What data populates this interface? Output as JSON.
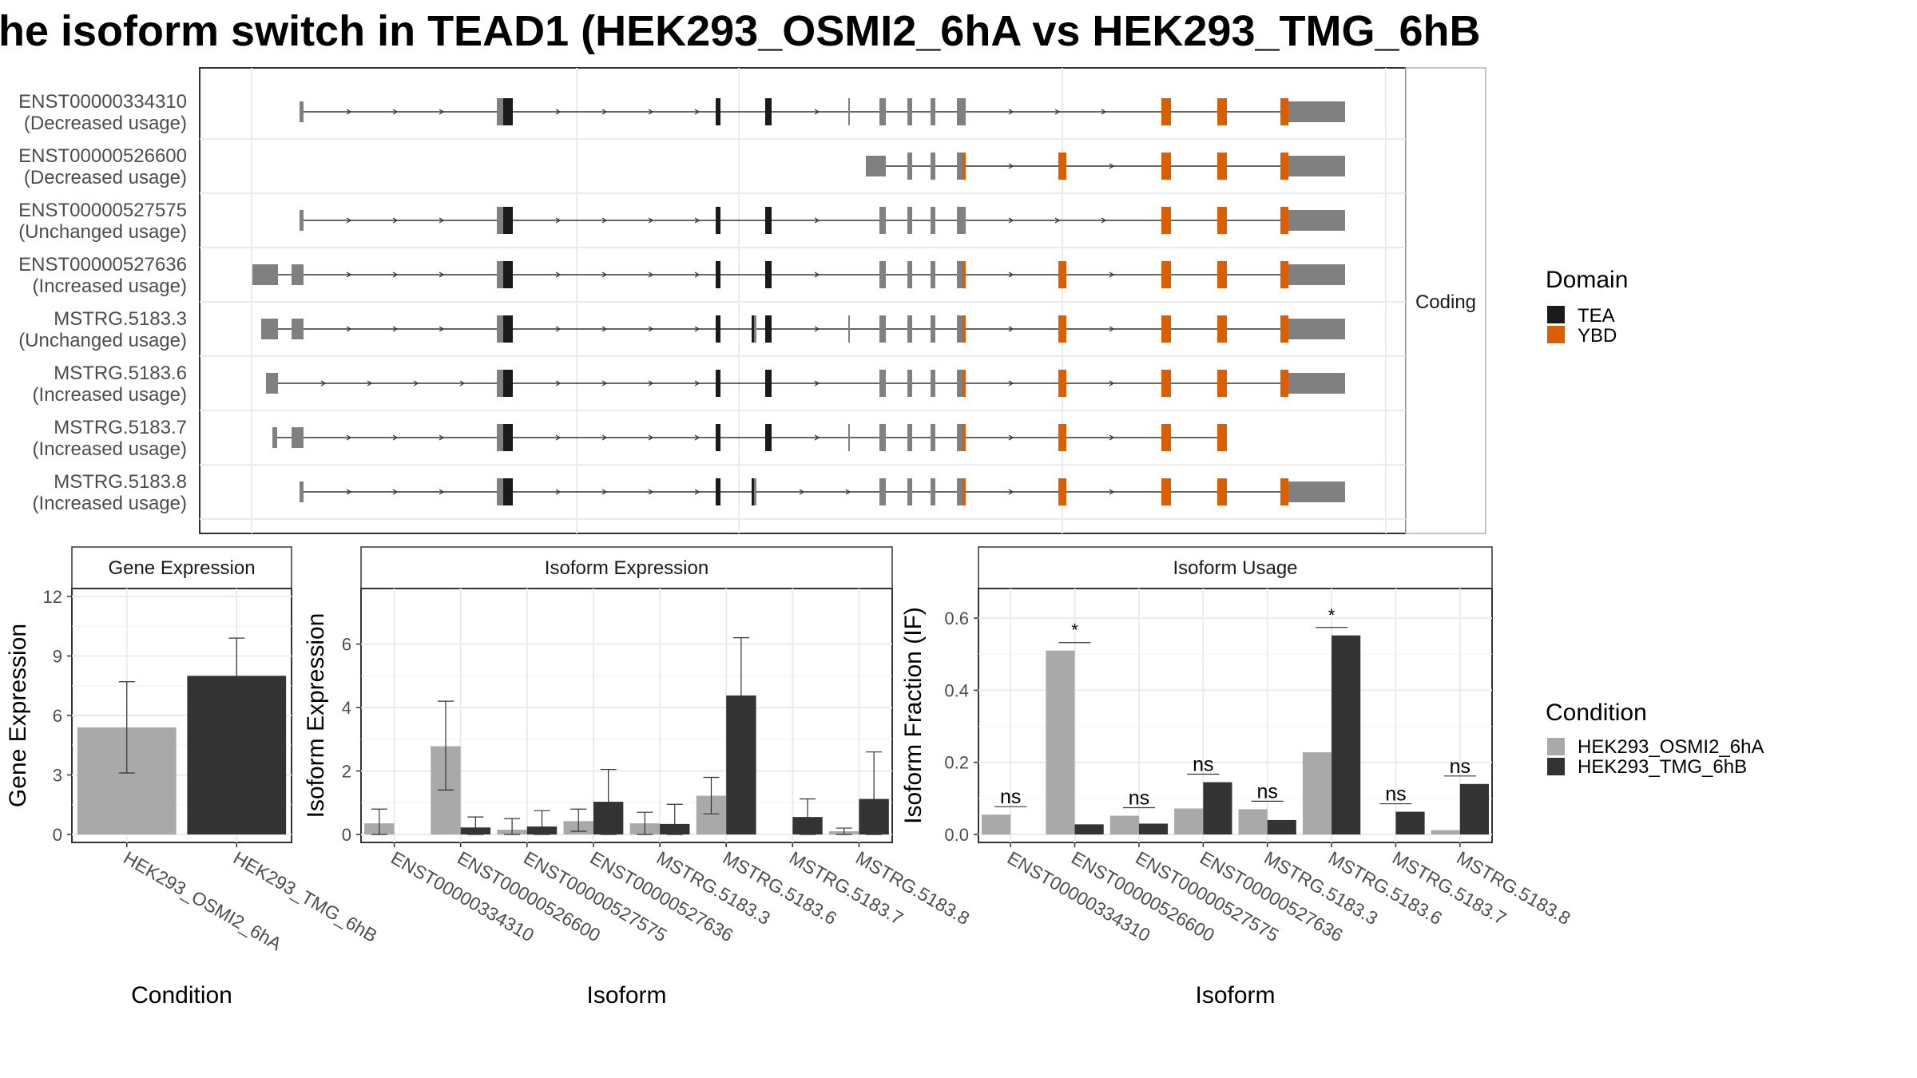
{
  "title": "he isoform switch in TEAD1 (HEK293_OSMI2_6hA vs HEK293_TMG_6hB",
  "colors": {
    "TEA": "#1a1a1a",
    "YBD": "#d95f02",
    "non_domain": "#808080",
    "cond1": "#a9a9a9",
    "cond2": "#333333",
    "panel_border": "#333333",
    "grid": "#ebebeb"
  },
  "chart_data": [
    {
      "type": "gene-structure",
      "strip_label": "Coding",
      "transcripts": [
        {
          "id": "ENST00000334310",
          "status": "(Decreased usage)",
          "start": 375,
          "cds": [
            625,
            642
          ],
          "tea": [
            630,
            642
          ],
          "ybd": [],
          "exons": [
            [
              375,
              380
            ],
            [
              622,
              642
            ],
            [
              896,
              902
            ],
            [
              958,
              966
            ],
            [
              1062,
              1064
            ],
            [
              1101,
              1109
            ],
            [
              1136,
              1142
            ],
            [
              1165,
              1171
            ],
            [
              1198,
              1209
            ],
            [
              1454,
              1466
            ],
            [
              1524,
              1536
            ],
            [
              1603,
              1684
            ]
          ]
        },
        {
          "id": "ENST00000526600",
          "status": "(Decreased usage)",
          "start": 1084,
          "cds": [
            1088,
            1203
          ],
          "tea": [],
          "ybd": [
            1198,
            1209
          ],
          "exons": [
            [
              1084,
              1109
            ],
            [
              1136,
              1142
            ],
            [
              1165,
              1171
            ],
            [
              1198,
              1209
            ],
            [
              1325,
              1335
            ],
            [
              1454,
              1466
            ],
            [
              1524,
              1536
            ],
            [
              1603,
              1684
            ]
          ]
        },
        {
          "id": "ENST00000527575",
          "status": "(Unchanged usage)",
          "start": 375,
          "cds": [
            625,
            642
          ],
          "tea": [
            630,
            642
          ],
          "ybd": [],
          "exons": [
            [
              375,
              380
            ],
            [
              622,
              642
            ],
            [
              896,
              902
            ],
            [
              958,
              966
            ],
            [
              1101,
              1109
            ],
            [
              1136,
              1142
            ],
            [
              1165,
              1171
            ],
            [
              1198,
              1209
            ],
            [
              1454,
              1466
            ],
            [
              1524,
              1536
            ],
            [
              1603,
              1684
            ]
          ]
        },
        {
          "id": "ENST00000527636",
          "status": "(Increased usage)",
          "start": 316,
          "cds": [
            625,
            642
          ],
          "tea": [
            630,
            642
          ],
          "ybd": [],
          "exons": [
            [
              316,
              348
            ],
            [
              365,
              380
            ],
            [
              622,
              642
            ],
            [
              896,
              902
            ],
            [
              958,
              966
            ],
            [
              1101,
              1109
            ],
            [
              1136,
              1142
            ],
            [
              1165,
              1171
            ],
            [
              1198,
              1209
            ],
            [
              1325,
              1335
            ],
            [
              1454,
              1466
            ],
            [
              1524,
              1536
            ],
            [
              1603,
              1684
            ]
          ]
        },
        {
          "id": "MSTRG.5183.3",
          "status": "(Unchanged usage)",
          "start": 327,
          "cds": [
            625,
            642
          ],
          "tea": [
            630,
            642
          ],
          "ybd": [],
          "exons": [
            [
              327,
              348
            ],
            [
              365,
              380
            ],
            [
              622,
              642
            ],
            [
              896,
              902
            ],
            [
              941,
              947
            ],
            [
              958,
              966
            ],
            [
              1062,
              1064
            ],
            [
              1101,
              1109
            ],
            [
              1136,
              1142
            ],
            [
              1165,
              1171
            ],
            [
              1198,
              1209
            ],
            [
              1325,
              1335
            ],
            [
              1454,
              1466
            ],
            [
              1524,
              1536
            ],
            [
              1603,
              1684
            ]
          ]
        },
        {
          "id": "MSTRG.5183.6",
          "status": "(Increased usage)",
          "start": 333,
          "cds": [
            625,
            642
          ],
          "tea": [
            630,
            642
          ],
          "ybd": [],
          "exons": [
            [
              333,
              348
            ],
            [
              622,
              642
            ],
            [
              896,
              902
            ],
            [
              958,
              966
            ],
            [
              1101,
              1109
            ],
            [
              1136,
              1142
            ],
            [
              1165,
              1171
            ],
            [
              1198,
              1209
            ],
            [
              1325,
              1335
            ],
            [
              1454,
              1466
            ],
            [
              1524,
              1536
            ],
            [
              1603,
              1684
            ]
          ]
        },
        {
          "id": "MSTRG.5183.7",
          "status": "(Increased usage)",
          "start": 341,
          "cds": [
            625,
            642
          ],
          "tea": [
            630,
            642
          ],
          "ybd": [],
          "exons": [
            [
              341,
              347
            ],
            [
              365,
              380
            ],
            [
              622,
              642
            ],
            [
              896,
              902
            ],
            [
              958,
              966
            ],
            [
              1062,
              1064
            ],
            [
              1101,
              1109
            ],
            [
              1136,
              1142
            ],
            [
              1165,
              1171
            ],
            [
              1198,
              1209
            ],
            [
              1325,
              1335
            ],
            [
              1454,
              1466
            ],
            [
              1524,
              1536
            ]
          ]
        },
        {
          "id": "MSTRG.5183.8",
          "status": "(Increased usage)",
          "start": 375,
          "cds": [
            625,
            642
          ],
          "tea": [
            630,
            642
          ],
          "ybd": [],
          "exons": [
            [
              375,
              380
            ],
            [
              622,
              642
            ],
            [
              896,
              902
            ],
            [
              941,
              947
            ],
            [
              1101,
              1109
            ],
            [
              1136,
              1142
            ],
            [
              1165,
              1171
            ],
            [
              1198,
              1209
            ],
            [
              1325,
              1335
            ],
            [
              1454,
              1466
            ],
            [
              1524,
              1536
            ],
            [
              1603,
              1684
            ]
          ]
        }
      ],
      "legend": {
        "title": "Domain",
        "items": [
          "TEA",
          "YBD"
        ]
      }
    },
    {
      "type": "bar",
      "strip_label": "Gene Expression",
      "xlabel": "Condition",
      "ylabel": "Gene Expression",
      "ylim": [
        0,
        12
      ],
      "yticks": [
        0,
        3,
        6,
        9,
        12
      ],
      "categories": [
        "HEK293_OSMI2_6hA",
        "HEK293_TMG_6hB"
      ],
      "values": [
        5.4,
        8.0
      ],
      "errors": [
        [
          3.1,
          7.7
        ],
        [
          6.0,
          9.9
        ]
      ]
    },
    {
      "type": "bar",
      "strip_label": "Isoform Expression",
      "xlabel": "Isoform",
      "ylabel": "Isoform Expression",
      "ylim": [
        0,
        7.5
      ],
      "yticks": [
        0,
        2,
        4,
        6
      ],
      "categories": [
        "ENST00000334310",
        "ENST00000526600",
        "ENST00000527575",
        "ENST00000527636",
        "MSTRG.5183.3",
        "MSTRG.5183.6",
        "MSTRG.5183.7",
        "MSTRG.5183.8"
      ],
      "series": [
        {
          "name": "HEK293_OSMI2_6hA",
          "values": [
            0.35,
            2.78,
            0.15,
            0.42,
            0.35,
            1.22,
            0.0,
            0.1
          ],
          "errors": [
            [
              0.0,
              0.8
            ],
            [
              1.4,
              4.2
            ],
            [
              0.0,
              0.5
            ],
            [
              0.1,
              0.8
            ],
            [
              0.0,
              0.7
            ],
            [
              0.65,
              1.8
            ],
            [
              0.0,
              0.0
            ],
            [
              0.0,
              0.2
            ]
          ]
        },
        {
          "name": "HEK293_TMG_6hB",
          "values": [
            0.0,
            0.22,
            0.25,
            1.03,
            0.33,
            4.38,
            0.55,
            1.12
          ],
          "errors": [
            [
              0.0,
              0.0
            ],
            [
              0.0,
              0.55
            ],
            [
              0.0,
              0.75
            ],
            [
              0.0,
              2.05
            ],
            [
              0.0,
              0.95
            ],
            [
              2.55,
              6.2
            ],
            [
              0.0,
              1.12
            ],
            [
              0.0,
              2.6
            ]
          ]
        }
      ]
    },
    {
      "type": "bar",
      "strip_label": "Isoform Usage",
      "xlabel": "Isoform",
      "ylabel": "Isoform Fraction (IF)",
      "ylim": [
        0,
        0.66
      ],
      "yticks": [
        "0.0",
        "0.2",
        "0.4",
        "0.6"
      ],
      "categories": [
        "ENST00000334310",
        "ENST00000526600",
        "ENST00000527575",
        "ENST00000527636",
        "MSTRG.5183.3",
        "MSTRG.5183.6",
        "MSTRG.5183.7",
        "MSTRG.5183.8"
      ],
      "series": [
        {
          "name": "HEK293_OSMI2_6hA",
          "values": [
            0.055,
            0.51,
            0.052,
            0.072,
            0.07,
            0.228,
            0.0,
            0.012
          ]
        },
        {
          "name": "HEK293_TMG_6hB",
          "values": [
            0.0,
            0.028,
            0.03,
            0.145,
            0.04,
            0.552,
            0.063,
            0.14
          ]
        }
      ],
      "significance": [
        "ns",
        "*",
        "ns",
        "ns",
        "ns",
        "*",
        "ns",
        "ns"
      ],
      "legend": {
        "title": "Condition",
        "items": [
          "HEK293_OSMI2_6hA",
          "HEK293_TMG_6hB"
        ]
      }
    }
  ]
}
